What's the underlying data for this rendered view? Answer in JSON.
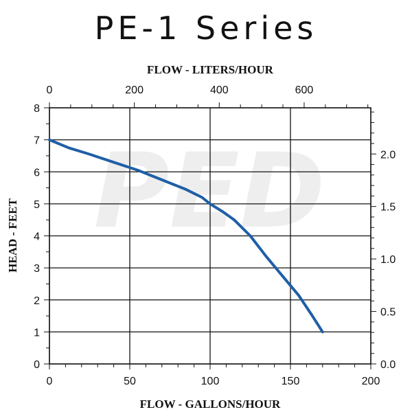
{
  "title": "PE-1 Series",
  "chart_data": {
    "type": "line",
    "title": "PE-1 Series",
    "xlabel": "FLOW - GALLONS/HOUR",
    "ylabel": "HEAD - FEET",
    "x2label": "FLOW - LITERS/HOUR",
    "xlim": [
      0,
      200
    ],
    "ylim": [
      0,
      8
    ],
    "x2lim": [
      0,
      757
    ],
    "y2lim": [
      0,
      2.44
    ],
    "xticks": [
      0,
      50,
      100,
      150,
      200
    ],
    "yticks": [
      0,
      1,
      2,
      3,
      4,
      5,
      6,
      7,
      8
    ],
    "x2ticks": [
      0,
      200,
      400,
      600
    ],
    "y2ticks": [
      0.0,
      0.5,
      1.0,
      1.5,
      2.0
    ],
    "xtick_labels": [
      "0",
      "50",
      "100",
      "150",
      "200"
    ],
    "ytick_labels": [
      "0",
      "1",
      "2",
      "3",
      "4",
      "5",
      "6",
      "7",
      "8"
    ],
    "x2tick_labels": [
      "0",
      "200",
      "400",
      "600"
    ],
    "y2tick_labels": [
      "0.0",
      "0.5",
      "1.0",
      "1.5",
      "2.0"
    ],
    "grid": true,
    "series": [
      {
        "x": [
          0,
          12,
          25,
          40,
          55,
          70,
          85,
          95,
          100,
          108,
          115,
          125,
          135,
          145,
          155,
          163,
          170
        ],
        "y": [
          7.0,
          6.75,
          6.55,
          6.3,
          6.05,
          5.75,
          5.45,
          5.2,
          5.0,
          4.75,
          4.5,
          4.0,
          3.35,
          2.75,
          2.15,
          1.55,
          1.0
        ]
      }
    ],
    "colors": {
      "line": "#1f5fa6",
      "grid": "#111111",
      "watermark": "#eeeeee"
    },
    "watermark": "PED"
  }
}
